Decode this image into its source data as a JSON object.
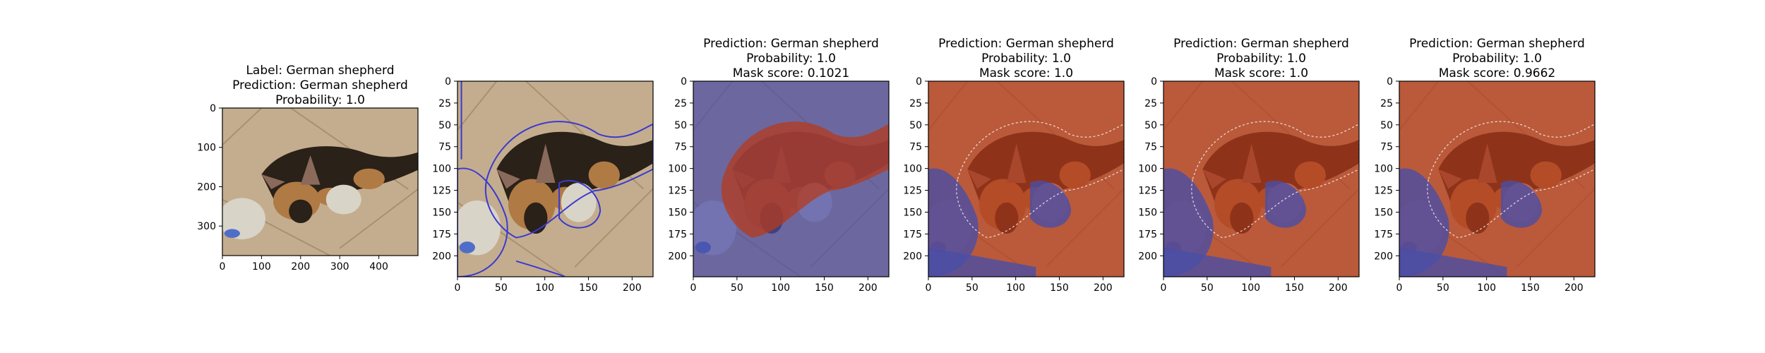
{
  "figure": {
    "background": "#ffffff",
    "panels": [
      {
        "id": "original",
        "title_lines": [
          "Label: German shepherd",
          "Prediction: German shepherd",
          "Probability: 1.0"
        ],
        "xticks": [
          "0",
          "100",
          "200",
          "300",
          "400"
        ],
        "xtick_values": [
          0,
          100,
          200,
          300,
          400
        ],
        "yticks": [
          "0",
          "100",
          "200",
          "300"
        ],
        "ytick_values": [
          0,
          100,
          200,
          300
        ],
        "xlim": [
          0,
          500
        ],
        "ylim": [
          0,
          375
        ],
        "overlay": "none"
      },
      {
        "id": "segments",
        "title_lines": [],
        "xticks": [
          "0",
          "50",
          "100",
          "150",
          "200"
        ],
        "xtick_values": [
          0,
          50,
          100,
          150,
          200
        ],
        "yticks": [
          "0",
          "25",
          "50",
          "75",
          "100",
          "125",
          "150",
          "175",
          "200"
        ],
        "ytick_values": [
          0,
          25,
          50,
          75,
          100,
          125,
          150,
          175,
          200
        ],
        "xlim": [
          0,
          224
        ],
        "ylim": [
          0,
          224
        ],
        "overlay": "boundaries"
      },
      {
        "id": "mask-1",
        "title_lines": [
          "Prediction: German shepherd",
          "Probability: 1.0",
          "Mask score: 0.1021"
        ],
        "xticks": [
          "0",
          "50",
          "100",
          "150",
          "200"
        ],
        "xtick_values": [
          0,
          50,
          100,
          150,
          200
        ],
        "yticks": [
          "0",
          "25",
          "50",
          "75",
          "100",
          "125",
          "150",
          "175",
          "200"
        ],
        "ytick_values": [
          0,
          25,
          50,
          75,
          100,
          125,
          150,
          175,
          200
        ],
        "xlim": [
          0,
          224
        ],
        "ylim": [
          0,
          224
        ],
        "overlay": "mask-dog"
      },
      {
        "id": "mask-2",
        "title_lines": [
          "Prediction: German shepherd",
          "Probability: 1.0",
          "Mask score: 1.0"
        ],
        "xticks": [
          "0",
          "50",
          "100",
          "150",
          "200"
        ],
        "xtick_values": [
          0,
          50,
          100,
          150,
          200
        ],
        "yticks": [
          "0",
          "25",
          "50",
          "75",
          "100",
          "125",
          "150",
          "175",
          "200"
        ],
        "ytick_values": [
          0,
          25,
          50,
          75,
          100,
          125,
          150,
          175,
          200
        ],
        "xlim": [
          0,
          224
        ],
        "ylim": [
          0,
          224
        ],
        "overlay": "mask-floor"
      },
      {
        "id": "mask-3",
        "title_lines": [
          "Prediction: German shepherd",
          "Probability: 1.0",
          "Mask score: 1.0"
        ],
        "xticks": [
          "0",
          "50",
          "100",
          "150",
          "200"
        ],
        "xtick_values": [
          0,
          50,
          100,
          150,
          200
        ],
        "yticks": [
          "0",
          "25",
          "50",
          "75",
          "100",
          "125",
          "150",
          "175",
          "200"
        ],
        "ytick_values": [
          0,
          25,
          50,
          75,
          100,
          125,
          150,
          175,
          200
        ],
        "xlim": [
          0,
          224
        ],
        "ylim": [
          0,
          224
        ],
        "overlay": "mask-floor"
      },
      {
        "id": "mask-4",
        "title_lines": [
          "Prediction: German shepherd",
          "Probability: 1.0",
          "Mask score: 0.9662"
        ],
        "xticks": [
          "0",
          "50",
          "100",
          "150",
          "200"
        ],
        "xtick_values": [
          0,
          50,
          100,
          150,
          200
        ],
        "yticks": [
          "0",
          "25",
          "50",
          "75",
          "100",
          "125",
          "150",
          "175",
          "200"
        ],
        "ytick_values": [
          0,
          25,
          50,
          75,
          100,
          125,
          150,
          175,
          200
        ],
        "xlim": [
          0,
          224
        ],
        "ylim": [
          0,
          224
        ],
        "overlay": "mask-floor"
      }
    ],
    "colors": {
      "floor": "#c4ad8e",
      "floor_dark": "#a8916f",
      "dog_black": "#2a2118",
      "dog_tan": "#b07a45",
      "toy": "#d9d4c8",
      "toy_blue": "#4f6ec8",
      "boundary": "#3a3ad0",
      "mask_red": "#b53a1c",
      "mask_blue": "#4a4da6"
    }
  },
  "chart_data": [
    {
      "type": "image",
      "title": "Label: German shepherd\nPrediction: German shepherd\nProbability: 1.0",
      "xlim": [
        0,
        500
      ],
      "ylim": [
        375,
        0
      ],
      "xticks": [
        0,
        100,
        200,
        300,
        400
      ],
      "yticks": [
        0,
        100,
        200,
        300
      ]
    },
    {
      "type": "image",
      "title": "",
      "xlim": [
        0,
        224
      ],
      "ylim": [
        224,
        0
      ],
      "xticks": [
        0,
        50,
        100,
        150,
        200
      ],
      "yticks": [
        0,
        25,
        50,
        75,
        100,
        125,
        150,
        175,
        200
      ]
    },
    {
      "type": "image",
      "title": "Prediction: German shepherd\nProbability: 1.0\nMask score: 0.1021",
      "mask_score": 0.1021,
      "probability": 1.0,
      "xlim": [
        0,
        224
      ],
      "ylim": [
        224,
        0
      ]
    },
    {
      "type": "image",
      "title": "Prediction: German shepherd\nProbability: 1.0\nMask score: 1.0",
      "mask_score": 1.0,
      "probability": 1.0,
      "xlim": [
        0,
        224
      ],
      "ylim": [
        224,
        0
      ]
    },
    {
      "type": "image",
      "title": "Prediction: German shepherd\nProbability: 1.0\nMask score: 1.0",
      "mask_score": 1.0,
      "probability": 1.0,
      "xlim": [
        0,
        224
      ],
      "ylim": [
        224,
        0
      ]
    },
    {
      "type": "image",
      "title": "Prediction: German shepherd\nProbability: 1.0\nMask score: 0.9662",
      "mask_score": 0.9662,
      "probability": 1.0,
      "xlim": [
        0,
        224
      ],
      "ylim": [
        224,
        0
      ]
    }
  ]
}
